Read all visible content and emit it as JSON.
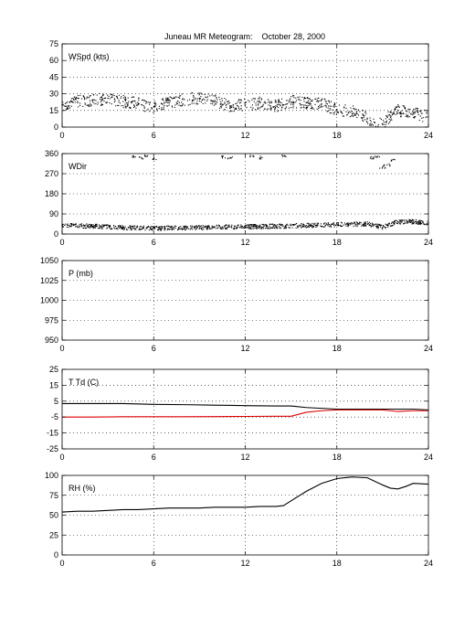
{
  "title": "Juneau MR Meteogram:    October 28, 2000",
  "chart_data": [
    {
      "type": "scatter",
      "label": "WSpd (kts)",
      "xlim": [
        0,
        24
      ],
      "xticks": [
        0,
        6,
        12,
        18,
        24
      ],
      "ylim": [
        0,
        75
      ],
      "yticks": [
        0,
        15,
        30,
        45,
        60,
        75
      ],
      "grid": true,
      "series": [
        {
          "color": "#000000",
          "marker": "dot",
          "x": [
            0,
            1,
            2,
            3,
            4,
            5,
            6,
            7,
            8,
            9,
            10,
            11,
            12,
            13,
            14,
            15,
            16,
            17,
            18,
            19,
            20,
            20.5,
            21,
            21.5,
            22,
            23,
            24
          ],
          "y": [
            20,
            23,
            24,
            26,
            23,
            21,
            18,
            22,
            25,
            26,
            24,
            19,
            20,
            22,
            19,
            23,
            22,
            21,
            16,
            14,
            8,
            4,
            3,
            10,
            15,
            13,
            9
          ]
        }
      ]
    },
    {
      "type": "scatter",
      "label": "WDir",
      "xlim": [
        0,
        24
      ],
      "xticks": [
        0,
        6,
        12,
        18,
        24
      ],
      "ylim": [
        0,
        360
      ],
      "yticks": [
        0,
        90,
        180,
        270,
        360
      ],
      "grid": true,
      "series": [
        {
          "color": "#000000",
          "marker": "dot",
          "x": [
            0,
            2,
            4,
            6,
            8,
            10,
            12,
            14,
            16,
            18,
            20,
            21,
            22,
            23,
            24
          ],
          "y": [
            40,
            35,
            28,
            25,
            28,
            30,
            32,
            35,
            38,
            42,
            45,
            30,
            55,
            55,
            50
          ]
        },
        {
          "color": "#000000",
          "marker": "dot",
          "x": [
            4.8,
            5.2,
            5.6,
            6.0,
            10.5,
            11.0,
            12.5,
            13.1,
            14.6,
            20.2,
            20.6,
            21.0,
            21.3,
            21.6
          ],
          "y": [
            345,
            340,
            350,
            338,
            345,
            340,
            350,
            342,
            348,
            340,
            345,
            300,
            310,
            330
          ]
        }
      ]
    },
    {
      "type": "line",
      "label": "P (mb)",
      "xlim": [
        0,
        24
      ],
      "xticks": [
        0,
        6,
        12,
        18,
        24
      ],
      "ylim": [
        950,
        1050
      ],
      "yticks": [
        950,
        975,
        1000,
        1025,
        1050
      ],
      "grid": true,
      "series": []
    },
    {
      "type": "line",
      "label": "T Td (C)",
      "xlim": [
        0,
        24
      ],
      "xticks": [
        0,
        6,
        12,
        18,
        24
      ],
      "ylim": [
        -25,
        25
      ],
      "yticks": [
        -25,
        -15,
        -5,
        5,
        15,
        25
      ],
      "grid": true,
      "series": [
        {
          "color": "#000000",
          "x": [
            0,
            2,
            4,
            6,
            8,
            10,
            12,
            14,
            15,
            16,
            17,
            18,
            19,
            20,
            21,
            22,
            23,
            24
          ],
          "y": [
            3.5,
            3.5,
            3.5,
            3.0,
            2.8,
            2.5,
            2.2,
            2.0,
            2.0,
            1.0,
            0.5,
            0.0,
            0.0,
            0.0,
            0.0,
            0.0,
            0.0,
            -0.5
          ]
        },
        {
          "color": "#dd0000",
          "x": [
            0,
            2,
            4,
            6,
            8,
            10,
            12,
            14,
            15,
            16,
            17,
            18,
            19,
            20,
            21,
            22,
            23,
            24
          ],
          "y": [
            -5.0,
            -5.0,
            -4.8,
            -4.8,
            -4.8,
            -4.7,
            -4.6,
            -4.5,
            -4.5,
            -2.0,
            -1.0,
            -0.5,
            -0.5,
            -0.5,
            -0.5,
            -1.5,
            -1.0,
            -1.0
          ]
        }
      ]
    },
    {
      "type": "line",
      "label": "RH (%)",
      "xlim": [
        0,
        24
      ],
      "xticks": [
        0,
        6,
        12,
        18,
        24
      ],
      "ylim": [
        0,
        100
      ],
      "yticks": [
        0,
        25,
        50,
        75,
        100
      ],
      "grid": true,
      "series": [
        {
          "color": "#000000",
          "x": [
            0,
            1,
            2,
            3,
            4,
            5,
            6,
            7,
            8,
            9,
            10,
            11,
            12,
            13,
            14,
            14.5,
            15,
            16,
            17,
            18,
            19,
            20,
            21,
            21.5,
            22,
            22.5,
            23,
            24
          ],
          "y": [
            54,
            55,
            55,
            56,
            57,
            57,
            58,
            59,
            59,
            59,
            60,
            60,
            60,
            61,
            61,
            62,
            68,
            80,
            90,
            96,
            98,
            97,
            88,
            84,
            83,
            86,
            90,
            89
          ]
        }
      ]
    }
  ]
}
